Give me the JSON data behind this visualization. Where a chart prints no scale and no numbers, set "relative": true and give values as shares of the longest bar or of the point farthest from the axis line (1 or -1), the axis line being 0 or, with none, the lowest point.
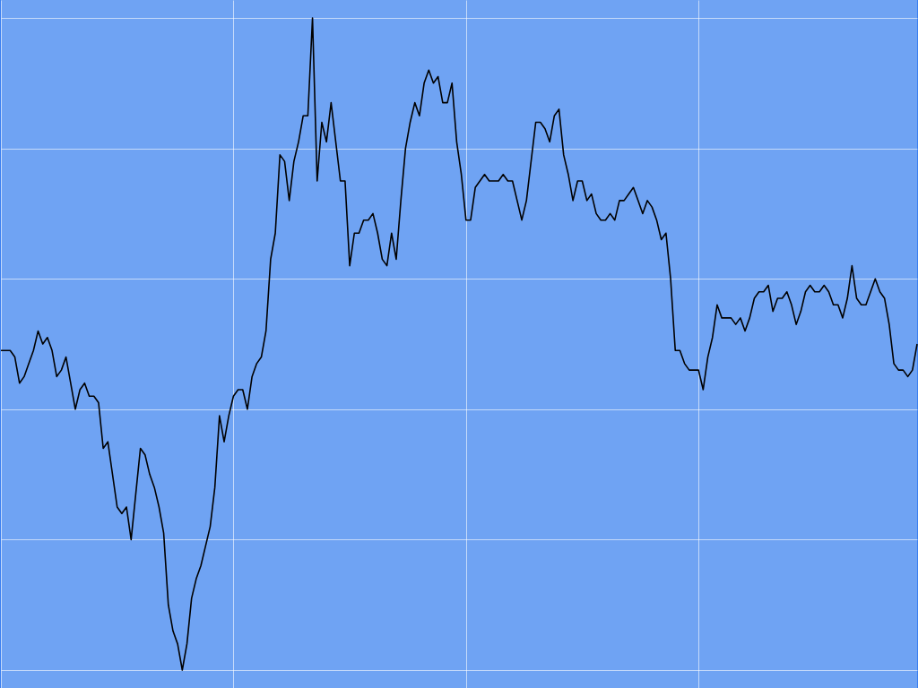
{
  "chart_data": {
    "type": "line",
    "relative": true,
    "grid": true,
    "legend": false,
    "marker": "none",
    "line_style": "solid",
    "tick_labels": false,
    "categories": [
      null,
      null,
      null,
      null,
      null,
      null,
      null,
      null,
      null,
      null,
      null,
      null,
      null,
      null,
      null,
      null,
      null,
      null,
      null,
      null,
      null,
      null,
      null,
      null,
      null,
      null,
      null,
      null,
      null,
      null,
      null,
      null,
      null,
      null,
      null,
      null,
      null,
      null,
      null,
      null,
      null,
      null,
      null,
      null,
      null,
      null,
      null,
      null,
      null,
      null,
      null,
      null,
      null,
      null,
      null,
      null,
      null,
      null,
      null,
      null,
      null,
      null,
      null,
      null,
      null,
      null,
      null,
      null,
      null,
      null,
      null,
      null,
      null,
      null,
      null,
      null,
      null,
      null,
      null,
      null,
      null,
      null,
      null,
      null,
      null,
      null,
      null,
      null,
      null,
      null,
      null,
      null,
      null,
      null,
      null,
      null,
      null,
      null,
      null,
      null,
      null,
      null,
      null,
      null,
      null,
      null,
      null,
      null,
      null,
      null,
      null,
      null,
      null,
      null,
      null,
      null,
      null,
      null,
      null,
      null,
      null,
      null,
      null,
      null,
      null,
      null,
      null,
      null,
      null,
      null,
      null,
      null,
      null,
      null,
      null,
      null,
      null,
      null,
      null,
      null,
      null,
      null,
      null,
      null,
      null,
      null,
      null,
      null,
      null,
      null,
      null,
      null,
      null,
      null,
      null,
      null,
      null,
      null,
      null,
      null,
      null,
      null,
      null,
      null,
      null,
      null,
      null,
      null,
      null,
      null,
      null,
      null,
      null,
      null,
      null,
      null,
      null,
      null,
      null,
      null,
      null,
      null,
      null,
      null,
      null,
      null,
      null,
      null,
      null,
      null,
      null,
      null,
      null,
      null,
      null,
      null,
      null,
      null
    ],
    "series": [
      {
        "color": "#000000",
        "values": [
          0.49,
          0.49,
          0.49,
          0.48,
          0.44,
          0.45,
          0.47,
          0.49,
          0.52,
          0.5,
          0.51,
          0.49,
          0.45,
          0.46,
          0.48,
          0.44,
          0.4,
          0.43,
          0.44,
          0.42,
          0.42,
          0.41,
          0.34,
          0.35,
          0.3,
          0.25,
          0.24,
          0.25,
          0.2,
          0.27,
          0.34,
          0.33,
          0.3,
          0.28,
          0.25,
          0.21,
          0.1,
          0.06,
          0.04,
          0,
          0.04,
          0.11,
          0.14,
          0.16,
          0.19,
          0.22,
          0.28,
          0.39,
          0.35,
          0.39,
          0.42,
          0.43,
          0.43,
          0.4,
          0.45,
          0.47,
          0.48,
          0.52,
          0.63,
          0.67,
          0.79,
          0.78,
          0.72,
          0.78,
          0.81,
          0.85,
          0.85,
          1,
          0.75,
          0.84,
          0.81,
          0.87,
          0.81,
          0.75,
          0.75,
          0.62,
          0.67,
          0.67,
          0.69,
          0.69,
          0.7,
          0.67,
          0.63,
          0.62,
          0.67,
          0.63,
          0.72,
          0.8,
          0.84,
          0.87,
          0.85,
          0.9,
          0.92,
          0.9,
          0.91,
          0.87,
          0.87,
          0.9,
          0.81,
          0.76,
          0.69,
          0.69,
          0.74,
          0.75,
          0.76,
          0.75,
          0.75,
          0.75,
          0.76,
          0.75,
          0.75,
          0.72,
          0.69,
          0.72,
          0.78,
          0.84,
          0.84,
          0.83,
          0.81,
          0.85,
          0.86,
          0.79,
          0.76,
          0.72,
          0.75,
          0.75,
          0.72,
          0.73,
          0.7,
          0.69,
          0.69,
          0.7,
          0.69,
          0.72,
          0.72,
          0.73,
          0.74,
          0.72,
          0.7,
          0.72,
          0.71,
          0.69,
          0.66,
          0.67,
          0.6,
          0.49,
          0.49,
          0.47,
          0.46,
          0.46,
          0.46,
          0.43,
          0.48,
          0.51,
          0.56,
          0.54,
          0.54,
          0.54,
          0.53,
          0.54,
          0.52,
          0.54,
          0.57,
          0.58,
          0.58,
          0.59,
          0.55,
          0.57,
          0.57,
          0.58,
          0.56,
          0.53,
          0.55,
          0.58,
          0.59,
          0.58,
          0.58,
          0.59,
          0.58,
          0.56,
          0.56,
          0.54,
          0.57,
          0.62,
          0.57,
          0.56,
          0.56,
          0.58,
          0.6,
          0.58,
          0.57,
          0.53,
          0.47,
          0.46,
          0.46,
          0.45,
          0.46,
          0.5
        ]
      }
    ]
  }
}
